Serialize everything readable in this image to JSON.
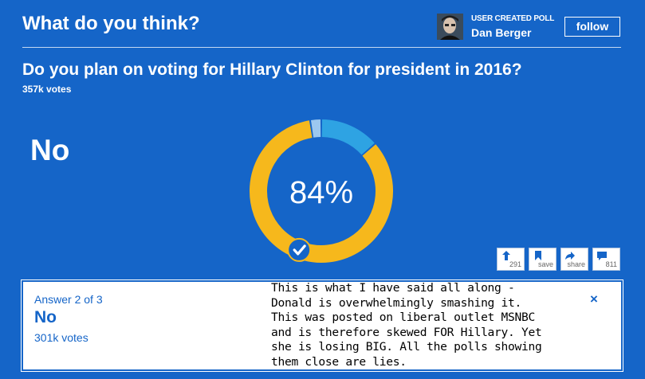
{
  "header": {
    "title": "What do you think?",
    "author_caption": "USER CREATED POLL",
    "author_name": "Dan Berger",
    "follow_label": "follow"
  },
  "poll": {
    "question": "Do you plan on voting for Hillary Clinton for president in 2016?",
    "total_votes": "357k votes",
    "selected_answer": "No",
    "selected_percent": "84%",
    "selected_share": 0.84,
    "segments": [
      {
        "share": 0.84,
        "color": "#f6b81c"
      },
      {
        "share": 0.135,
        "color": "#2ea3e3"
      },
      {
        "share": 0.025,
        "color": "#9cc8ef"
      }
    ]
  },
  "actions": {
    "upvote": {
      "icon": "arrow-up-icon",
      "count": "291"
    },
    "save": {
      "icon": "bookmark-icon",
      "label": "save"
    },
    "share": {
      "icon": "share-arrow-icon",
      "label": "share"
    },
    "comments": {
      "icon": "comment-icon",
      "count": "811"
    }
  },
  "answer_card": {
    "position_label": "Answer 2 of 3",
    "name": "No",
    "votes": "301k votes",
    "close_glyph": "×"
  },
  "comment_lines": [
    "This is what I have said all along -",
    "Donald is overwhelmingly smashing it.",
    "This was posted on liberal outlet MSNBC",
    "and is therefore skewed FOR Hillary. Yet",
    "she is losing BIG.  All the polls showing",
    "them close are lies."
  ],
  "colors": {
    "background": "#1565c8",
    "accent_yellow": "#f6b81c",
    "accent_blue": "#2ea3e3"
  }
}
